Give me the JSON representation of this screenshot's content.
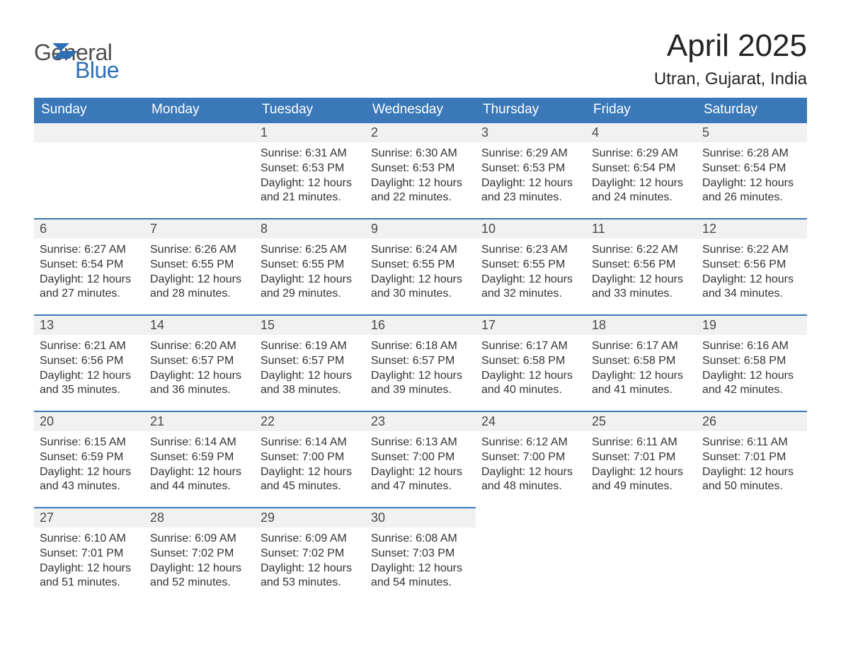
{
  "logo": {
    "word1": "General",
    "word2": "Blue",
    "icon_color": "#2f6fb3",
    "word1_color": "#4f4f4f",
    "word2_color": "#2f6fb3"
  },
  "title": "April 2025",
  "location": "Utran, Gujarat, India",
  "colors": {
    "header_bg": "#3b78b8",
    "header_text": "#ffffff",
    "daynum_bg": "#f1f1f1",
    "daynum_border": "#3b78b8",
    "body_text": "#333333",
    "page_bg": "#ffffff"
  },
  "weekdays": [
    "Sunday",
    "Monday",
    "Tuesday",
    "Wednesday",
    "Thursday",
    "Friday",
    "Saturday"
  ],
  "weeks": [
    [
      {
        "empty": true
      },
      {
        "empty": true
      },
      {
        "num": "1",
        "sunrise": "Sunrise: 6:31 AM",
        "sunset": "Sunset: 6:53 PM",
        "daylight1": "Daylight: 12 hours",
        "daylight2": "and 21 minutes."
      },
      {
        "num": "2",
        "sunrise": "Sunrise: 6:30 AM",
        "sunset": "Sunset: 6:53 PM",
        "daylight1": "Daylight: 12 hours",
        "daylight2": "and 22 minutes."
      },
      {
        "num": "3",
        "sunrise": "Sunrise: 6:29 AM",
        "sunset": "Sunset: 6:53 PM",
        "daylight1": "Daylight: 12 hours",
        "daylight2": "and 23 minutes."
      },
      {
        "num": "4",
        "sunrise": "Sunrise: 6:29 AM",
        "sunset": "Sunset: 6:54 PM",
        "daylight1": "Daylight: 12 hours",
        "daylight2": "and 24 minutes."
      },
      {
        "num": "5",
        "sunrise": "Sunrise: 6:28 AM",
        "sunset": "Sunset: 6:54 PM",
        "daylight1": "Daylight: 12 hours",
        "daylight2": "and 26 minutes."
      }
    ],
    [
      {
        "num": "6",
        "sunrise": "Sunrise: 6:27 AM",
        "sunset": "Sunset: 6:54 PM",
        "daylight1": "Daylight: 12 hours",
        "daylight2": "and 27 minutes."
      },
      {
        "num": "7",
        "sunrise": "Sunrise: 6:26 AM",
        "sunset": "Sunset: 6:55 PM",
        "daylight1": "Daylight: 12 hours",
        "daylight2": "and 28 minutes."
      },
      {
        "num": "8",
        "sunrise": "Sunrise: 6:25 AM",
        "sunset": "Sunset: 6:55 PM",
        "daylight1": "Daylight: 12 hours",
        "daylight2": "and 29 minutes."
      },
      {
        "num": "9",
        "sunrise": "Sunrise: 6:24 AM",
        "sunset": "Sunset: 6:55 PM",
        "daylight1": "Daylight: 12 hours",
        "daylight2": "and 30 minutes."
      },
      {
        "num": "10",
        "sunrise": "Sunrise: 6:23 AM",
        "sunset": "Sunset: 6:55 PM",
        "daylight1": "Daylight: 12 hours",
        "daylight2": "and 32 minutes."
      },
      {
        "num": "11",
        "sunrise": "Sunrise: 6:22 AM",
        "sunset": "Sunset: 6:56 PM",
        "daylight1": "Daylight: 12 hours",
        "daylight2": "and 33 minutes."
      },
      {
        "num": "12",
        "sunrise": "Sunrise: 6:22 AM",
        "sunset": "Sunset: 6:56 PM",
        "daylight1": "Daylight: 12 hours",
        "daylight2": "and 34 minutes."
      }
    ],
    [
      {
        "num": "13",
        "sunrise": "Sunrise: 6:21 AM",
        "sunset": "Sunset: 6:56 PM",
        "daylight1": "Daylight: 12 hours",
        "daylight2": "and 35 minutes."
      },
      {
        "num": "14",
        "sunrise": "Sunrise: 6:20 AM",
        "sunset": "Sunset: 6:57 PM",
        "daylight1": "Daylight: 12 hours",
        "daylight2": "and 36 minutes."
      },
      {
        "num": "15",
        "sunrise": "Sunrise: 6:19 AM",
        "sunset": "Sunset: 6:57 PM",
        "daylight1": "Daylight: 12 hours",
        "daylight2": "and 38 minutes."
      },
      {
        "num": "16",
        "sunrise": "Sunrise: 6:18 AM",
        "sunset": "Sunset: 6:57 PM",
        "daylight1": "Daylight: 12 hours",
        "daylight2": "and 39 minutes."
      },
      {
        "num": "17",
        "sunrise": "Sunrise: 6:17 AM",
        "sunset": "Sunset: 6:58 PM",
        "daylight1": "Daylight: 12 hours",
        "daylight2": "and 40 minutes."
      },
      {
        "num": "18",
        "sunrise": "Sunrise: 6:17 AM",
        "sunset": "Sunset: 6:58 PM",
        "daylight1": "Daylight: 12 hours",
        "daylight2": "and 41 minutes."
      },
      {
        "num": "19",
        "sunrise": "Sunrise: 6:16 AM",
        "sunset": "Sunset: 6:58 PM",
        "daylight1": "Daylight: 12 hours",
        "daylight2": "and 42 minutes."
      }
    ],
    [
      {
        "num": "20",
        "sunrise": "Sunrise: 6:15 AM",
        "sunset": "Sunset: 6:59 PM",
        "daylight1": "Daylight: 12 hours",
        "daylight2": "and 43 minutes."
      },
      {
        "num": "21",
        "sunrise": "Sunrise: 6:14 AM",
        "sunset": "Sunset: 6:59 PM",
        "daylight1": "Daylight: 12 hours",
        "daylight2": "and 44 minutes."
      },
      {
        "num": "22",
        "sunrise": "Sunrise: 6:14 AM",
        "sunset": "Sunset: 7:00 PM",
        "daylight1": "Daylight: 12 hours",
        "daylight2": "and 45 minutes."
      },
      {
        "num": "23",
        "sunrise": "Sunrise: 6:13 AM",
        "sunset": "Sunset: 7:00 PM",
        "daylight1": "Daylight: 12 hours",
        "daylight2": "and 47 minutes."
      },
      {
        "num": "24",
        "sunrise": "Sunrise: 6:12 AM",
        "sunset": "Sunset: 7:00 PM",
        "daylight1": "Daylight: 12 hours",
        "daylight2": "and 48 minutes."
      },
      {
        "num": "25",
        "sunrise": "Sunrise: 6:11 AM",
        "sunset": "Sunset: 7:01 PM",
        "daylight1": "Daylight: 12 hours",
        "daylight2": "and 49 minutes."
      },
      {
        "num": "26",
        "sunrise": "Sunrise: 6:11 AM",
        "sunset": "Sunset: 7:01 PM",
        "daylight1": "Daylight: 12 hours",
        "daylight2": "and 50 minutes."
      }
    ],
    [
      {
        "num": "27",
        "sunrise": "Sunrise: 6:10 AM",
        "sunset": "Sunset: 7:01 PM",
        "daylight1": "Daylight: 12 hours",
        "daylight2": "and 51 minutes."
      },
      {
        "num": "28",
        "sunrise": "Sunrise: 6:09 AM",
        "sunset": "Sunset: 7:02 PM",
        "daylight1": "Daylight: 12 hours",
        "daylight2": "and 52 minutes."
      },
      {
        "num": "29",
        "sunrise": "Sunrise: 6:09 AM",
        "sunset": "Sunset: 7:02 PM",
        "daylight1": "Daylight: 12 hours",
        "daylight2": "and 53 minutes."
      },
      {
        "num": "30",
        "sunrise": "Sunrise: 6:08 AM",
        "sunset": "Sunset: 7:03 PM",
        "daylight1": "Daylight: 12 hours",
        "daylight2": "and 54 minutes."
      },
      {
        "blank": true
      },
      {
        "blank": true
      },
      {
        "blank": true
      }
    ]
  ]
}
